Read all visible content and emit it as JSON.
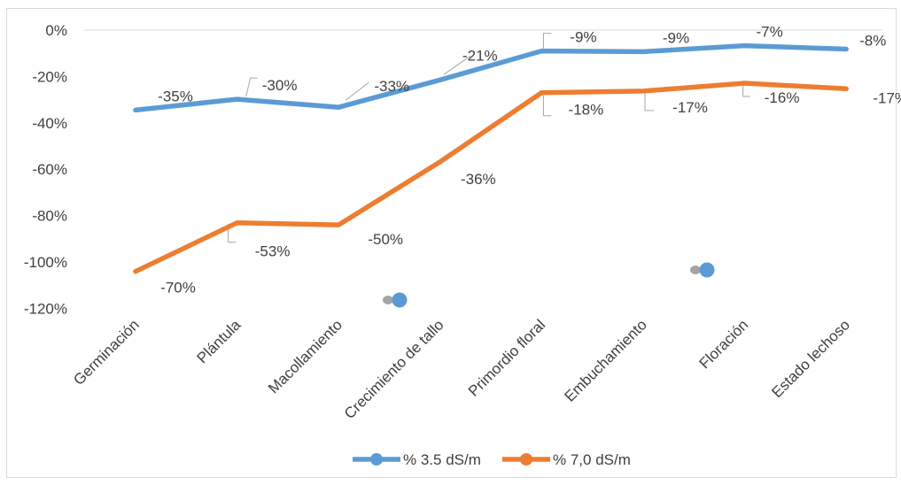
{
  "chart_data": {
    "type": "line",
    "title": "",
    "xlabel": "",
    "ylabel": "",
    "categories": [
      "Germinación",
      "Plántula",
      "Macollamiento",
      "Crecimiento de tallo",
      "Primordio floral",
      "Embuchamiento",
      "Floración",
      "Estado lechoso"
    ],
    "ylim": [
      -120,
      0
    ],
    "yticks": [
      "0%",
      "-20%",
      "-40%",
      "-60%",
      "-80%",
      "-100%",
      "-120%"
    ],
    "grid": "top-line-only",
    "legend_position": "bottom",
    "series": [
      {
        "name": "% 3.5 dS/m",
        "color": "#5b9bd5",
        "values": [
          -34.5,
          -29.8,
          -33.3,
          -21.5,
          -9.0,
          -9.3,
          -6.7,
          -8.2
        ],
        "labels": [
          "-35%",
          "-30%",
          "-33%",
          "-21%",
          "-9%",
          "-9%",
          "-7%",
          "-8%"
        ]
      },
      {
        "name": "% 7,0  dS/m",
        "color": "#ed7d31",
        "values": [
          -104.1,
          -83.1,
          -84.0,
          -56.8,
          -27.0,
          -26.3,
          -22.9,
          -25.3
        ],
        "labels": [
          "-70%",
          "-53%",
          "-50%",
          "-36%",
          "-18%",
          "-17%",
          "-16%",
          "-17%"
        ]
      }
    ]
  }
}
